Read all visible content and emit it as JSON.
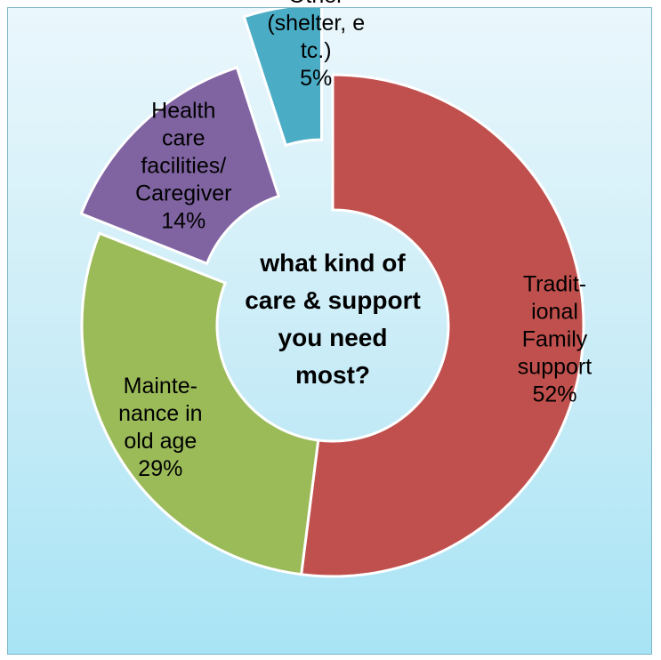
{
  "chart_data": {
    "type": "pie",
    "variant": "exploded-donut",
    "title": "what kind of care & support you need most?",
    "title_lines": [
      "what kind of",
      "care & support",
      "you need",
      "most?"
    ],
    "slices": [
      {
        "label": "Traditional Family support",
        "value": 52,
        "display": "52%",
        "color": "#c0504d",
        "label_lines": [
          "Tradit-",
          "ional",
          "Family",
          "support"
        ]
      },
      {
        "label": "Maintenance in old age",
        "value": 29,
        "display": "29%",
        "color": "#9bbb59",
        "label_lines": [
          "Mainte-",
          "nance in",
          "old age"
        ]
      },
      {
        "label": "Health care facilities/ Caregiver",
        "value": 14,
        "display": "14%",
        "color": "#8064a2",
        "label_lines": [
          "Health",
          "care",
          "facilities/",
          "Caregiver"
        ]
      },
      {
        "label": "Other (shelter, etc.)",
        "value": 5,
        "display": "5%",
        "color": "#4bacc6",
        "label_lines": [
          "Other",
          "(shelter, e",
          "tc.)"
        ]
      }
    ]
  }
}
